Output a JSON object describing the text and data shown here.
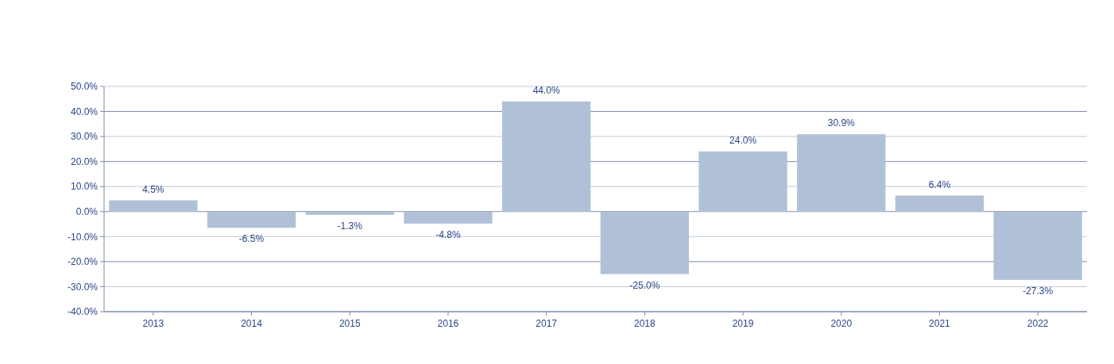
{
  "chart_data": {
    "type": "bar",
    "categories": [
      "2013",
      "2014",
      "2015",
      "2016",
      "2017",
      "2018",
      "2019",
      "2020",
      "2021",
      "2022"
    ],
    "series": [
      {
        "color": "#b0c1d7",
        "values": [
          4.5,
          -6.5,
          -1.3,
          -4.8,
          44.0,
          -25.0,
          24.0,
          30.9,
          6.4,
          -27.3
        ]
      }
    ],
    "ylim": [
      -40,
      50
    ],
    "yticks": [
      {
        "value": -40,
        "label": "-40.0%"
      },
      {
        "value": -30,
        "label": "-30.0%"
      },
      {
        "value": -20,
        "label": "-20.0%"
      },
      {
        "value": -10,
        "label": "-10.0%"
      },
      {
        "value": 0,
        "label": "0.0%"
      },
      {
        "value": 10,
        "label": "10.0%"
      },
      {
        "value": 20,
        "label": "20.0%"
      },
      {
        "value": 30,
        "label": "30.0%"
      },
      {
        "value": 40,
        "label": "40.0%"
      },
      {
        "value": 50,
        "label": "50.0%"
      }
    ],
    "value_labels": [
      "4.5%",
      "-6.5%",
      "-1.3%",
      "-4.8%",
      "44.0%",
      "-25.0%",
      "24.0%",
      "30.9%",
      "6.4%",
      "-27.3%"
    ],
    "grid": "y"
  }
}
